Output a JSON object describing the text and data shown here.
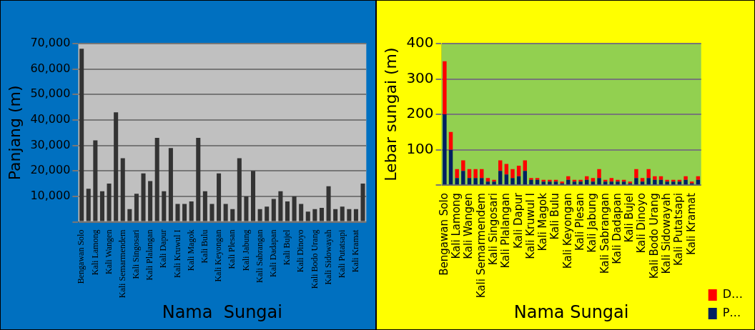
{
  "chart_data": [
    {
      "type": "bar",
      "xlabel": "Nama  Sungai",
      "ylabel": "Panjang (m)",
      "categories": [
        "Bengawan Solo",
        null,
        "Kali Lamong",
        null,
        "Kali Wangen",
        null,
        "Kali Semarmendem",
        null,
        "Kali Singosari",
        null,
        "Kali Plalangan",
        null,
        "Kali Dapur",
        null,
        "Kali Kruwul I",
        null,
        "Kali Magok",
        null,
        "Kali Bulu",
        null,
        "Kali Keyongan",
        null,
        "Kali Plesan",
        null,
        "Kali Jabung",
        null,
        "Kali Sabrangan",
        null,
        "Kali Dadapan",
        null,
        "Kali Bujel",
        null,
        "Kali Dinoyo",
        null,
        "Kali Bodo Urang",
        null,
        "Kali Sidowayah",
        null,
        "Kali Putatsapi",
        null,
        "Kali Kramat",
        null
      ],
      "values": [
        68000,
        13000,
        32000,
        12000,
        15000,
        43000,
        25000,
        5000,
        11000,
        19000,
        16000,
        33000,
        12000,
        29000,
        7000,
        7000,
        8000,
        33000,
        12000,
        7000,
        19000,
        7000,
        5000,
        25000,
        10000,
        20000,
        5000,
        6000,
        9000,
        12000,
        8000,
        10000,
        7000,
        4000,
        5000,
        5500,
        14000,
        5000,
        6000,
        5000,
        5000,
        15000
      ],
      "color": "#333333",
      "ylim": [
        0,
        70000
      ],
      "yticks": [
        {
          "value": 0,
          "label": null
        },
        {
          "value": 10000,
          "label": "10,000"
        },
        {
          "value": 20000,
          "label": "20,000"
        },
        {
          "value": 30000,
          "label": "30,000"
        },
        {
          "value": 40000,
          "label": "40,000"
        },
        {
          "value": 50000,
          "label": "50,000"
        },
        {
          "value": 60000,
          "label": "60,000"
        },
        {
          "value": 70000,
          "label": "70,000"
        }
      ],
      "grid": "y",
      "legend": false
    },
    {
      "type": "bar",
      "stacked": true,
      "xlabel": "Nama Sungai",
      "ylabel": "Lebar sungai (m)",
      "categories": [
        "Bengawan Solo",
        null,
        "Kali Lamong",
        null,
        "Kali Wangen",
        null,
        "Kali Semarmendem",
        null,
        "Kali Singosari",
        null,
        "Kali Plalangan",
        null,
        "Kali Dapur",
        null,
        "Kali Kruwul I",
        null,
        "Kali Magok",
        null,
        "Kali Bulu",
        null,
        "Kali Keyongan",
        null,
        "Kali Plesan",
        null,
        "Kali Jabung",
        null,
        "Kali Sabrangan",
        null,
        "Kali Dadapan",
        null,
        "Kali Bujel",
        null,
        "Kali Dinoyo",
        null,
        "Kali Bodo Urang",
        null,
        "Kali Sidowayah",
        null,
        "Kali Putatsapi",
        null,
        "Kali Kramat",
        null
      ],
      "series": [
        {
          "name": "P…",
          "color": "#002060",
          "values": [
            200,
            100,
            20,
            40,
            20,
            20,
            20,
            10,
            10,
            40,
            30,
            20,
            25,
            40,
            15,
            15,
            10,
            10,
            10,
            5,
            15,
            10,
            10,
            15,
            10,
            20,
            10,
            10,
            10,
            10,
            5,
            20,
            10,
            20,
            15,
            15,
            10,
            10,
            10,
            15,
            5,
            15
          ]
        },
        {
          "name": "D…",
          "color": "#ff0000",
          "values": [
            150,
            50,
            25,
            30,
            25,
            25,
            25,
            10,
            5,
            30,
            30,
            25,
            30,
            30,
            5,
            5,
            5,
            5,
            5,
            5,
            10,
            5,
            5,
            10,
            10,
            25,
            5,
            10,
            5,
            5,
            5,
            25,
            10,
            25,
            10,
            10,
            5,
            5,
            5,
            10,
            5,
            10
          ]
        }
      ],
      "ylim": [
        0,
        400
      ],
      "yticks": [
        {
          "value": 0,
          "label": null
        },
        100,
        200,
        300,
        400
      ],
      "grid": "y",
      "legend": "right"
    }
  ]
}
